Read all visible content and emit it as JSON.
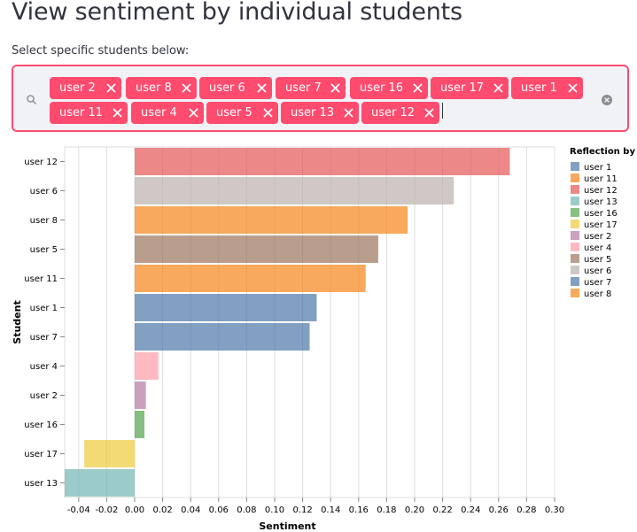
{
  "page": {
    "title": "View sentiment by individual students",
    "select_label": "Select specific students below:"
  },
  "multiselect": {
    "selected": [
      "user 2",
      "user 8",
      "user 6",
      "user 7",
      "user 16",
      "user 17",
      "user 1",
      "user 11",
      "user 4",
      "user 5",
      "user 13",
      "user 12"
    ],
    "tag_color": "#ff4b6e",
    "search_icon": "search-icon",
    "clear_icon": "clear-icon",
    "remove_icon": "close-icon"
  },
  "chart_data": {
    "type": "bar",
    "orientation": "horizontal",
    "xlabel": "Sentiment",
    "ylabel": "Student",
    "xlim": [
      -0.05,
      0.3
    ],
    "xticks": [
      -0.04,
      -0.02,
      0.0,
      0.02,
      0.04,
      0.06,
      0.08,
      0.1,
      0.12,
      0.14,
      0.16,
      0.18,
      0.2,
      0.22,
      0.24,
      0.26,
      0.28,
      0.3
    ],
    "xtick_labels": [
      "-0.04",
      "-0.02",
      "0.00",
      "0.02",
      "0.04",
      "0.06",
      "0.08",
      "0.10",
      "0.12",
      "0.14",
      "0.16",
      "0.18",
      "0.20",
      "0.22",
      "0.24",
      "0.26",
      "0.28",
      "0.30"
    ],
    "grid": true,
    "categories": [
      "user 12",
      "user 6",
      "user 8",
      "user 5",
      "user 11",
      "user 1",
      "user 7",
      "user 4",
      "user 2",
      "user 16",
      "user 17",
      "user 13"
    ],
    "values": [
      0.268,
      0.228,
      0.195,
      0.174,
      0.165,
      0.13,
      0.125,
      0.017,
      0.008,
      0.007,
      -0.036,
      -0.05
    ],
    "colors": [
      "#e45756",
      "#bab0ac",
      "#f58518",
      "#9d755d",
      "#f58518",
      "#4c78a8",
      "#4c78a8",
      "#ff9da6",
      "#b279a2",
      "#54a24b",
      "#eeca3b",
      "#72b7b2"
    ],
    "legend": {
      "title": "Reflection by",
      "position": "right",
      "entries": [
        {
          "label": "user 1",
          "color": "#4c78a8"
        },
        {
          "label": "user 11",
          "color": "#f58518"
        },
        {
          "label": "user 12",
          "color": "#e45756"
        },
        {
          "label": "user 13",
          "color": "#72b7b2"
        },
        {
          "label": "user 16",
          "color": "#54a24b"
        },
        {
          "label": "user 17",
          "color": "#eeca3b"
        },
        {
          "label": "user 2",
          "color": "#b279a2"
        },
        {
          "label": "user 4",
          "color": "#ff9da6"
        },
        {
          "label": "user 5",
          "color": "#9d755d"
        },
        {
          "label": "user 6",
          "color": "#bab0ac"
        },
        {
          "label": "user 7",
          "color": "#4c78a8"
        },
        {
          "label": "user 8",
          "color": "#f58518"
        }
      ]
    }
  }
}
